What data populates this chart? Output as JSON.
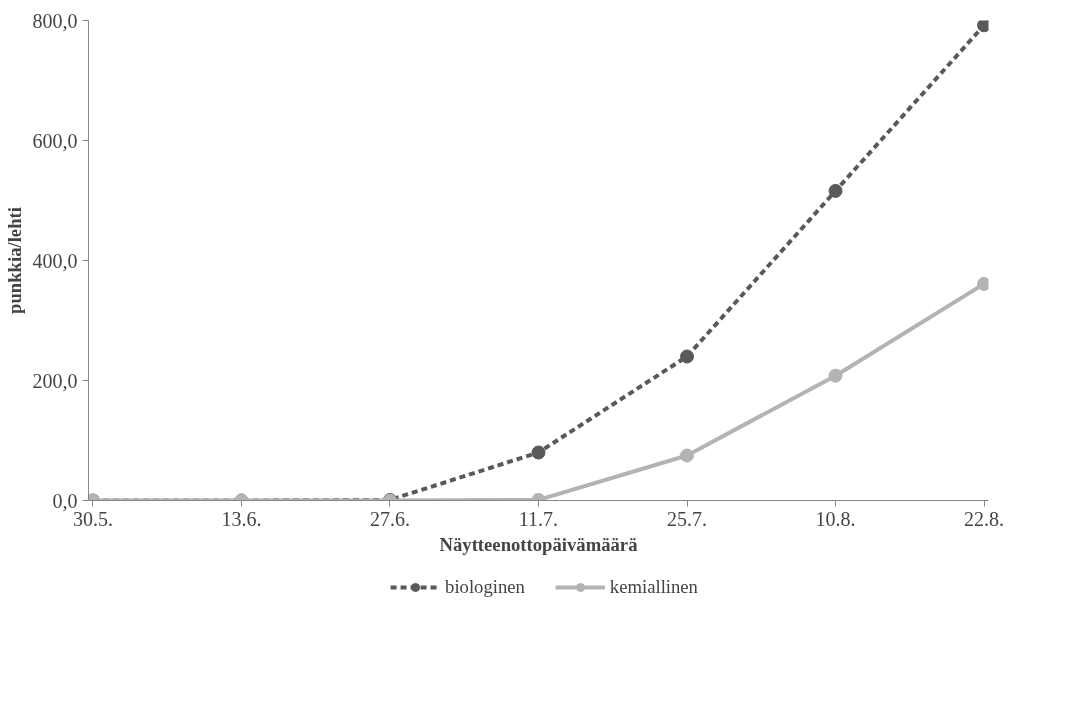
{
  "chart_data": {
    "type": "line",
    "xlabel": "Näytteenottopäivämäärä",
    "ylabel": "punkkia/lehti",
    "categories": [
      "30.5.",
      "13.6.",
      "27.6.",
      "11.7.",
      "25.7.",
      "10.8.",
      "22.8."
    ],
    "series": [
      {
        "name": "biologinen",
        "color": "#595959",
        "line_style": "dashed",
        "values": [
          0,
          0,
          1,
          80,
          240,
          516,
          792
        ]
      },
      {
        "name": "kemiallinen",
        "color": "#b3b3b3",
        "line_style": "solid",
        "values": [
          0,
          0,
          0,
          1,
          75,
          208,
          361
        ]
      }
    ],
    "ylim": [
      0,
      800
    ],
    "yticks": [
      {
        "value": 0,
        "label": "0,0"
      },
      {
        "value": 200,
        "label": "200,0"
      },
      {
        "value": 400,
        "label": "400,0"
      },
      {
        "value": 600,
        "label": "600,0"
      },
      {
        "value": 800,
        "label": "800,0"
      }
    ],
    "marker": "circle",
    "grid": false,
    "legend": "bottom"
  }
}
